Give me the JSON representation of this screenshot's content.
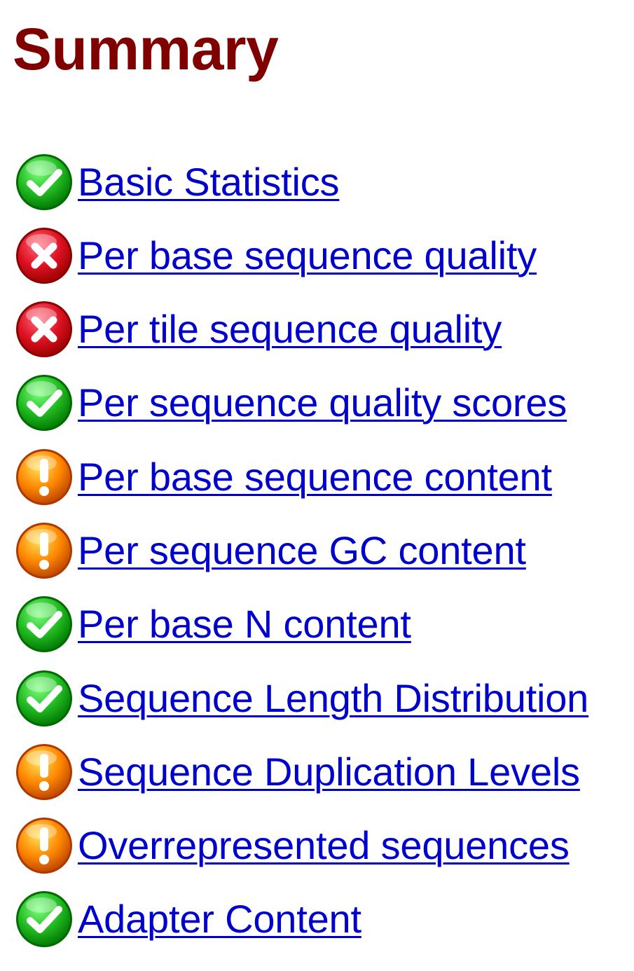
{
  "page": {
    "title": "Summary"
  },
  "status_colors": {
    "pass": "#22bb22",
    "fail": "#dd1122",
    "warn": "#ff8800",
    "link": "#0000cc",
    "title": "#800000"
  },
  "modules": [
    {
      "label": "Basic Statistics",
      "status": "pass",
      "icon": "check-icon"
    },
    {
      "label": "Per base sequence quality",
      "status": "fail",
      "icon": "cross-icon"
    },
    {
      "label": "Per tile sequence quality",
      "status": "fail",
      "icon": "cross-icon"
    },
    {
      "label": "Per sequence quality scores",
      "status": "pass",
      "icon": "check-icon"
    },
    {
      "label": "Per base sequence content",
      "status": "warn",
      "icon": "exclamation-icon"
    },
    {
      "label": "Per sequence GC content",
      "status": "warn",
      "icon": "exclamation-icon"
    },
    {
      "label": "Per base N content",
      "status": "pass",
      "icon": "check-icon"
    },
    {
      "label": "Sequence Length Distribution",
      "status": "pass",
      "icon": "check-icon"
    },
    {
      "label": "Sequence Duplication Levels",
      "status": "warn",
      "icon": "exclamation-icon"
    },
    {
      "label": "Overrepresented sequences",
      "status": "warn",
      "icon": "exclamation-icon"
    },
    {
      "label": "Adapter Content",
      "status": "pass",
      "icon": "check-icon"
    }
  ]
}
